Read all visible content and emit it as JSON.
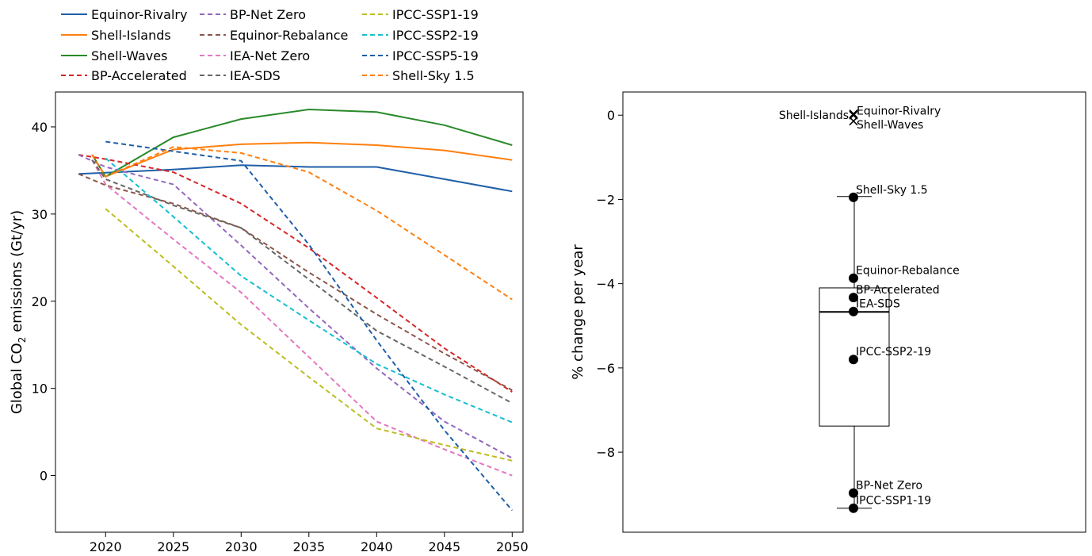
{
  "chart_data": [
    {
      "type": "line",
      "title": "",
      "xlabel": "",
      "ylabel_main": "Global CO",
      "ylabel_sub": "2",
      "ylabel_tail": " emissions (Gt/yr)",
      "xlim": [
        2016.3,
        2050.8
      ],
      "ylim": [
        -6.5,
        44
      ],
      "xticks": [
        2020,
        2025,
        2030,
        2035,
        2040,
        2045,
        2050
      ],
      "yticks": [
        0,
        10,
        20,
        30,
        40
      ],
      "legend_position": "top",
      "series": [
        {
          "name": "Equinor-Rivalry",
          "color": "#1f5fa8",
          "dash": "solid",
          "points": [
            [
              2018,
              34.6
            ],
            [
              2025,
              35.1
            ],
            [
              2030,
              35.6
            ],
            [
              2035,
              35.4
            ],
            [
              2040,
              35.4
            ],
            [
              2045,
              34.0
            ],
            [
              2050,
              32.6
            ]
          ]
        },
        {
          "name": "Shell-Islands",
          "color": "#ff7f0e",
          "dash": "solid",
          "points": [
            [
              2019,
              36.8
            ],
            [
              2020,
              34.3
            ],
            [
              2025,
              37.4
            ],
            [
              2030,
              38.0
            ],
            [
              2035,
              38.2
            ],
            [
              2040,
              37.9
            ],
            [
              2045,
              37.3
            ],
            [
              2050,
              36.2
            ]
          ]
        },
        {
          "name": "Shell-Waves",
          "color": "#2a8a2a",
          "dash": "solid",
          "points": [
            [
              2019,
              36.8
            ],
            [
              2020,
              34.3
            ],
            [
              2025,
              38.8
            ],
            [
              2030,
              40.9
            ],
            [
              2035,
              42.0
            ],
            [
              2040,
              41.7
            ],
            [
              2045,
              40.2
            ],
            [
              2050,
              37.9
            ]
          ]
        },
        {
          "name": "BP-Accelerated",
          "color": "#d62728",
          "dash": "dashed",
          "points": [
            [
              2018,
              36.8
            ],
            [
              2020,
              36.3
            ],
            [
              2025,
              34.8
            ],
            [
              2030,
              31.2
            ],
            [
              2035,
              26.1
            ],
            [
              2040,
              20.4
            ],
            [
              2045,
              14.6
            ],
            [
              2050,
              9.6
            ]
          ]
        },
        {
          "name": "BP-Net Zero",
          "color": "#9467bd",
          "dash": "dashed",
          "points": [
            [
              2018,
              36.8
            ],
            [
              2020,
              35.4
            ],
            [
              2025,
              33.4
            ],
            [
              2030,
              26.4
            ],
            [
              2035,
              19.2
            ],
            [
              2040,
              12.3
            ],
            [
              2045,
              6.2
            ],
            [
              2050,
              2.0
            ]
          ]
        },
        {
          "name": "Equinor-Rebalance",
          "color": "#8c564b",
          "dash": "dashed",
          "points": [
            [
              2018,
              34.6
            ],
            [
              2020,
              33.3
            ],
            [
              2025,
              31.2
            ],
            [
              2030,
              28.4
            ],
            [
              2035,
              23.3
            ],
            [
              2040,
              18.5
            ],
            [
              2045,
              14.0
            ],
            [
              2050,
              9.8
            ]
          ]
        },
        {
          "name": "IEA-Net Zero",
          "color": "#e377c2",
          "dash": "dashed",
          "points": [
            [
              2019,
              36.2
            ],
            [
              2020,
              33.4
            ],
            [
              2025,
              27.1
            ],
            [
              2030,
              21.0
            ],
            [
              2035,
              13.6
            ],
            [
              2040,
              6.2
            ],
            [
              2045,
              3.0
            ],
            [
              2050,
              0.0
            ]
          ]
        },
        {
          "name": "IEA-SDS",
          "color": "#666666",
          "dash": "dashed",
          "points": [
            [
              2019,
              36.2
            ],
            [
              2020,
              34.0
            ],
            [
              2025,
              31.0
            ],
            [
              2030,
              28.4
            ],
            [
              2035,
              22.5
            ],
            [
              2040,
              16.6
            ],
            [
              2045,
              12.5
            ],
            [
              2050,
              8.3
            ]
          ]
        },
        {
          "name": "IPCC-SSP1-19",
          "color": "#bcbd22",
          "dash": "dashed",
          "points": [
            [
              2020,
              30.6
            ],
            [
              2025,
              24.0
            ],
            [
              2030,
              17.3
            ],
            [
              2035,
              11.3
            ],
            [
              2040,
              5.4
            ],
            [
              2045,
              3.5
            ],
            [
              2050,
              1.7
            ]
          ]
        },
        {
          "name": "IPCC-SSP2-19",
          "color": "#17becf",
          "dash": "dashed",
          "points": [
            [
              2020,
              36.4
            ],
            [
              2025,
              29.7
            ],
            [
              2030,
              22.9
            ],
            [
              2035,
              17.8
            ],
            [
              2040,
              12.8
            ],
            [
              2045,
              9.3
            ],
            [
              2050,
              6.1
            ]
          ]
        },
        {
          "name": "IPCC-SSP5-19",
          "color": "#1f5fa8",
          "dash": "dashed",
          "points": [
            [
              2020,
              38.3
            ],
            [
              2025,
              37.2
            ],
            [
              2030,
              36.1
            ],
            [
              2035,
              26.5
            ],
            [
              2040,
              15.5
            ],
            [
              2045,
              5.2
            ],
            [
              2050,
              -4.0
            ]
          ]
        },
        {
          "name": "Shell-Sky 1.5",
          "color": "#ff7f0e",
          "dash": "dashed",
          "points": [
            [
              2019,
              36.8
            ],
            [
              2020,
              34.3
            ],
            [
              2025,
              37.7
            ],
            [
              2030,
              37.0
            ],
            [
              2035,
              34.8
            ],
            [
              2040,
              30.4
            ],
            [
              2045,
              25.3
            ],
            [
              2050,
              20.2
            ]
          ]
        }
      ]
    },
    {
      "type": "box",
      "title": "",
      "ylabel": "% change per year",
      "ylim": [
        -9.9,
        0.55
      ],
      "yticks": [
        0,
        -2,
        -4,
        -6,
        -8
      ],
      "box": {
        "whisker_low": -9.33,
        "q1": -7.38,
        "median": -4.67,
        "q3": -4.1,
        "whisker_high": -1.93
      },
      "outliers": [
        {
          "label": "Shell-Waves",
          "value": 0.03,
          "label_side": "right",
          "label_dy": -0.25
        },
        {
          "label": "Shell-Islands",
          "value": 0.0,
          "label_side": "left",
          "label_dy": 0.0
        },
        {
          "label": "Equinor-Rivalry",
          "value": -0.14,
          "label_side": "right",
          "label_dy": 0.25
        }
      ],
      "points": [
        {
          "label": "Shell-Sky 1.5",
          "value": -1.95
        },
        {
          "label": "Equinor-Rebalance",
          "value": -3.87
        },
        {
          "label": "BP-Accelerated",
          "value": -4.33
        },
        {
          "label": "IEA-SDS",
          "value": -4.66
        },
        {
          "label": "IPCC-SSP2-19",
          "value": -5.8
        },
        {
          "label": "BP-Net Zero",
          "value": -8.97
        },
        {
          "label": "IPCC-SSP1-19",
          "value": -9.33
        }
      ]
    }
  ]
}
